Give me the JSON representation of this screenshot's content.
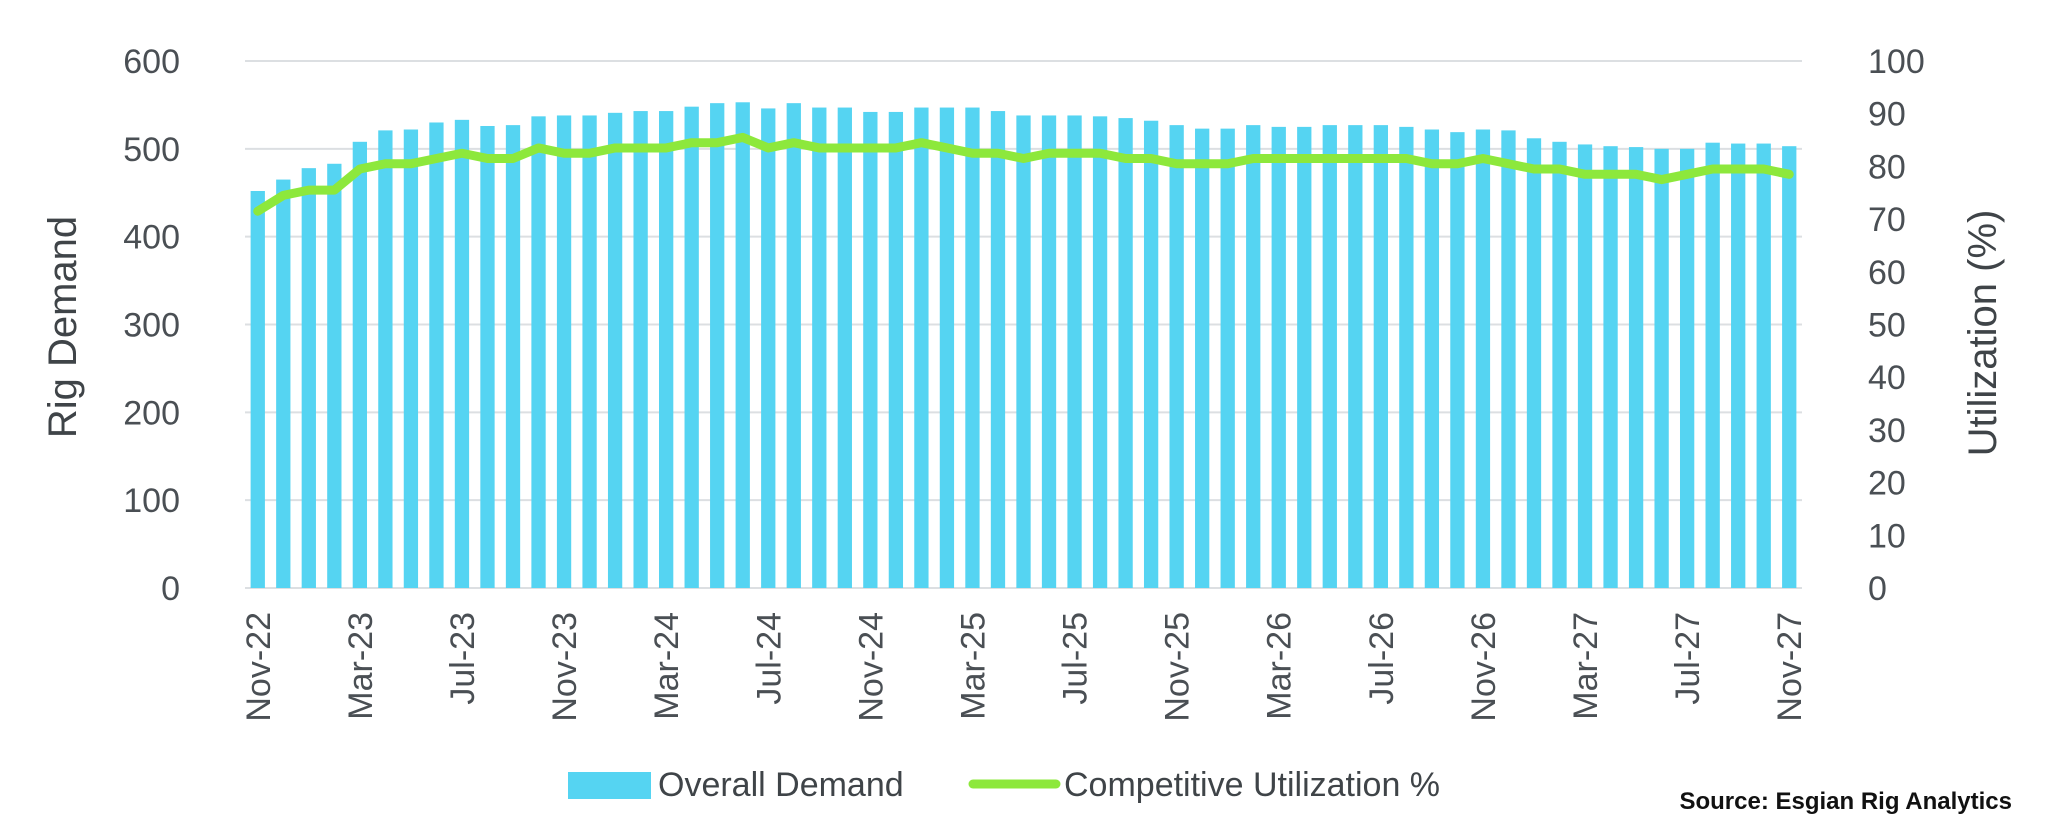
{
  "chart_data": {
    "type": "bar+line",
    "title": "",
    "categories": [
      "Nov-22",
      "Dec-22",
      "Jan-23",
      "Feb-23",
      "Mar-23",
      "Apr-23",
      "May-23",
      "Jun-23",
      "Jul-23",
      "Aug-23",
      "Sep-23",
      "Oct-23",
      "Nov-23",
      "Dec-23",
      "Jan-24",
      "Feb-24",
      "Mar-24",
      "Apr-24",
      "May-24",
      "Jun-24",
      "Jul-24",
      "Aug-24",
      "Sep-24",
      "Oct-24",
      "Nov-24",
      "Dec-24",
      "Jan-25",
      "Feb-25",
      "Mar-25",
      "Apr-25",
      "May-25",
      "Jun-25",
      "Jul-25",
      "Aug-25",
      "Sep-25",
      "Oct-25",
      "Nov-25",
      "Dec-25",
      "Jan-26",
      "Feb-26",
      "Mar-26",
      "Apr-26",
      "May-26",
      "Jun-26",
      "Jul-26",
      "Aug-26",
      "Sep-26",
      "Oct-26",
      "Nov-26",
      "Dec-26",
      "Jan-27",
      "Feb-27",
      "Mar-27",
      "Apr-27",
      "May-27",
      "Jun-27",
      "Jul-27",
      "Aug-27",
      "Sep-27",
      "Oct-27",
      "Nov-27"
    ],
    "x_tick_labels": [
      "Nov-22",
      "Mar-23",
      "Jul-23",
      "Nov-23",
      "Mar-24",
      "Jul-24",
      "Nov-24",
      "Mar-25",
      "Jul-25",
      "Nov-25",
      "Mar-26",
      "Jul-26",
      "Nov-26",
      "Mar-27",
      "Jul-27",
      "Nov-27"
    ],
    "series": [
      {
        "name": "Overall Demand",
        "type": "bar",
        "axis": "left",
        "color": "#55d4f2",
        "values": [
          452,
          465,
          478,
          483,
          508,
          521,
          522,
          530,
          533,
          526,
          527,
          537,
          538,
          538,
          541,
          543,
          543,
          548,
          552,
          553,
          546,
          552,
          547,
          547,
          542,
          542,
          547,
          547,
          547,
          543,
          538,
          538,
          538,
          537,
          535,
          532,
          527,
          523,
          523,
          527,
          525,
          525,
          527,
          527,
          527,
          525,
          522,
          519,
          522,
          521,
          512,
          508,
          505,
          503,
          502,
          500,
          500,
          507,
          506,
          506,
          503
        ]
      },
      {
        "name": "Competitive Utilization %",
        "type": "line",
        "axis": "right",
        "color": "#8de83c",
        "values": [
          71.5,
          74.5,
          75.5,
          75.5,
          79.5,
          80.5,
          80.5,
          81.5,
          82.5,
          81.5,
          81.5,
          83.5,
          82.5,
          82.5,
          83.5,
          83.5,
          83.5,
          84.5,
          84.5,
          85.5,
          83.5,
          84.5,
          83.5,
          83.5,
          83.5,
          83.5,
          84.5,
          83.5,
          82.5,
          82.5,
          81.5,
          82.5,
          82.5,
          82.5,
          81.5,
          81.5,
          80.5,
          80.5,
          80.5,
          81.5,
          81.5,
          81.5,
          81.5,
          81.5,
          81.5,
          81.5,
          80.5,
          80.5,
          81.5,
          80.5,
          79.5,
          79.5,
          78.5,
          78.5,
          78.5,
          77.5,
          78.5,
          79.5,
          79.5,
          79.5,
          78.5
        ]
      }
    ],
    "y_left": {
      "label": "Rig Demand",
      "min": 0,
      "max": 600,
      "ticks": [
        "0",
        "100",
        "200",
        "300",
        "400",
        "500",
        "600"
      ]
    },
    "y_right": {
      "label": "Utilization (%)",
      "min": 0,
      "max": 100,
      "ticks": [
        "0",
        "10",
        "20",
        "30",
        "40",
        "50",
        "60",
        "70",
        "80",
        "90",
        "100"
      ]
    },
    "grid": true,
    "legend_position": "bottom-center"
  },
  "legend": {
    "bar_label": "Overall Demand",
    "line_label": "Competitive Utilization %"
  },
  "source": "Source: Esgian Rig Analytics",
  "colors": {
    "bar": "#55d4f2",
    "line": "#8de83c",
    "grid": "#dcdfe2",
    "text": "#4a4f54"
  }
}
